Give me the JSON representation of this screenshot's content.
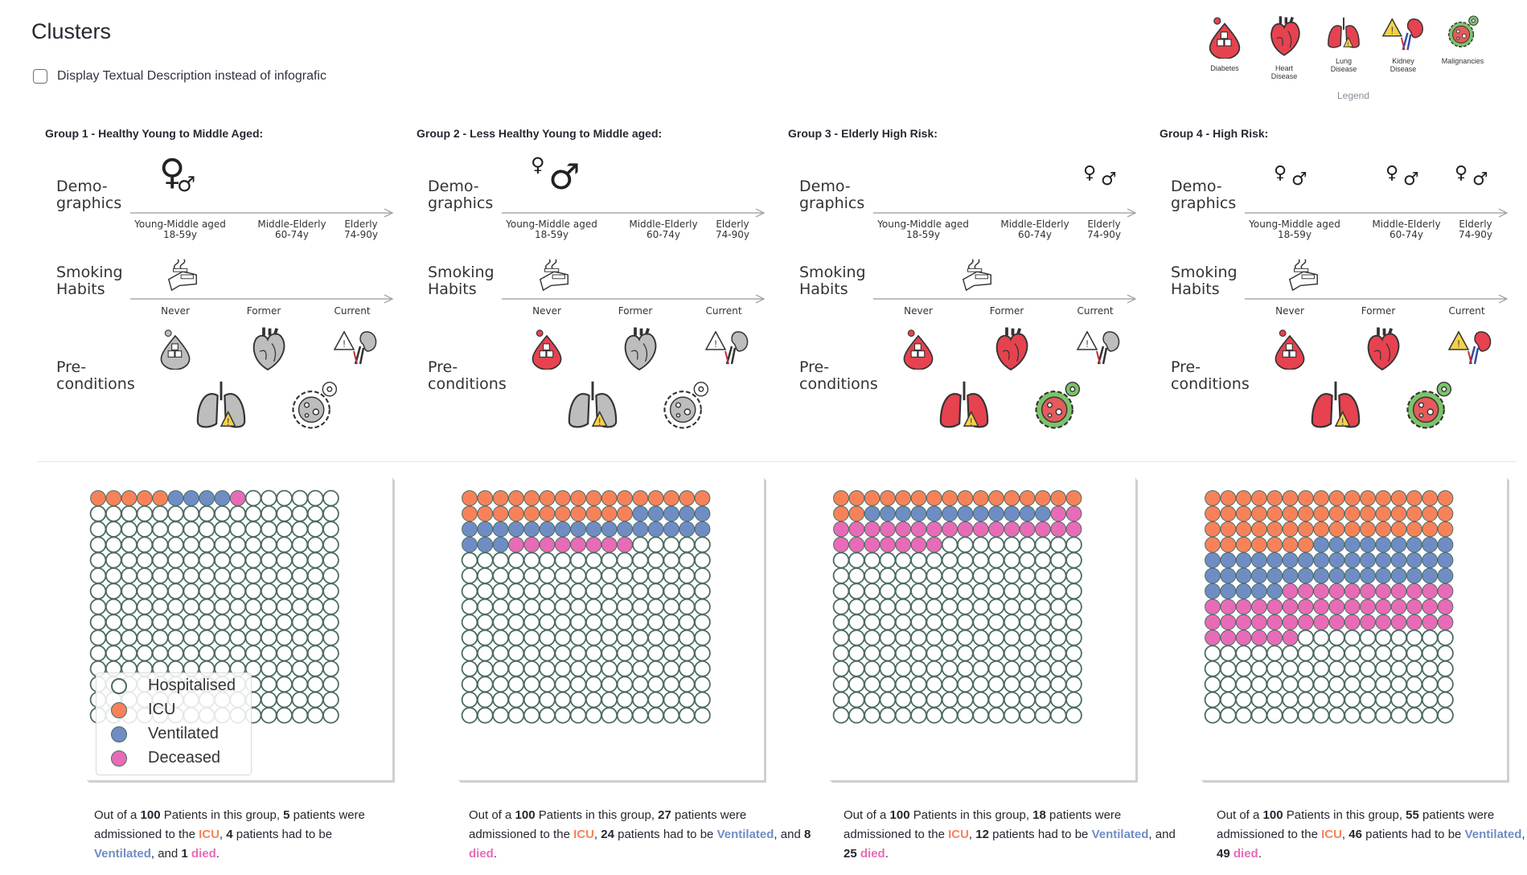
{
  "page": {
    "title": "Clusters",
    "checkbox_label": "Display Textual Description instead of infografic",
    "checkbox_checked": false
  },
  "legend": {
    "caption": "Legend",
    "items": [
      {
        "label": "Diabetes",
        "icon": "diabetes-icon"
      },
      {
        "label": "Heart\nDisease",
        "icon": "heart-icon"
      },
      {
        "label": "Lung\nDisease",
        "icon": "lungs-icon"
      },
      {
        "label": "Kidney\nDisease",
        "icon": "kidney-icon"
      },
      {
        "label": "Malignancies",
        "icon": "malignancy-icon"
      }
    ]
  },
  "infographic_labels": {
    "demographics": "Demo-\ngraphics",
    "smoking": "Smoking\nHabits",
    "preconditions": "Pre-\nconditions",
    "age_young": "Young-Middle aged\n18-59y",
    "age_middle": "Middle-Elderly\n60-74y",
    "age_elderly": "Elderly\n74-90y",
    "smoke_never": "Never",
    "smoke_former": "Former",
    "smoke_current": "Current"
  },
  "waffle_legend": {
    "hospitalised": "Hospitalised",
    "icu": "ICU",
    "ventilated": "Ventilated",
    "deceased": "Deceased"
  },
  "colors": {
    "icu": "#f7825a",
    "ventilated": "#6f8dc4",
    "deceased": "#e86bb7",
    "hospitalised_stroke": "#4c6b63",
    "risk_red": "#e6424f",
    "neutral_gray": "#bdbdbd"
  },
  "groups": [
    {
      "title": "Group 1 - Healthy Young to Middle Aged:",
      "demographics": [
        {
          "age": "young",
          "size": "large",
          "female": "♀",
          "male": "♂"
        }
      ],
      "smoking_position": "never",
      "conditions": {
        "diabetes": "gray",
        "heart": "gray",
        "kidney": "gray",
        "lung": "gray",
        "malignancy": "gray"
      },
      "waffle": {
        "total": 100,
        "icu": 5,
        "ventilated": 4,
        "deceased": 1
      },
      "desc": {
        "p1": "Out of a ",
        "total": "100",
        "p2": " Patients in this group, ",
        "icu_n": "5",
        "p3": " patients were admissioned to the ",
        "icu": "ICU",
        "p4": ", ",
        "vent_n": "4",
        "p5": " patients had to be ",
        "vent": "Ventilated",
        "p6": ", and ",
        "died_n": "1",
        "p7": " ",
        "died": "died",
        "p8": "."
      }
    },
    {
      "title": "Group 2 - Less Healthy Young to Middle aged:",
      "demographics": [
        {
          "age": "young",
          "size": "mixed",
          "female": "♀",
          "male": "♂"
        }
      ],
      "smoking_position": "never",
      "conditions": {
        "diabetes": "red",
        "heart": "gray",
        "kidney": "gray",
        "lung": "gray",
        "malignancy": "gray"
      },
      "waffle": {
        "total": 100,
        "icu": 27,
        "ventilated": 24,
        "deceased": 8
      },
      "desc": {
        "p1": "Out of a ",
        "total": "100",
        "p2": " Patients in this group, ",
        "icu_n": "27",
        "p3": " patients were admissioned to the ",
        "icu": "ICU",
        "p4": ", ",
        "vent_n": "24",
        "p5": " patients had to be ",
        "vent": "Ventilated",
        "p6": ", and ",
        "died_n": "8",
        "p7": " ",
        "died": "died",
        "p8": "."
      }
    },
    {
      "title": "Group 3 - Elderly High Risk:",
      "demographics": [
        {
          "age": "elderly",
          "size": "small",
          "female": "♀",
          "male": "♂"
        }
      ],
      "smoking_position": "former",
      "conditions": {
        "diabetes": "red",
        "heart": "red",
        "kidney": "gray",
        "lung": "red",
        "malignancy": "red"
      },
      "waffle": {
        "total": 100,
        "icu": 18,
        "ventilated": 12,
        "deceased": 25
      },
      "desc": {
        "p1": "Out of a ",
        "total": "100",
        "p2": " Patients in this group, ",
        "icu_n": "18",
        "p3": " patients were admissioned to the ",
        "icu": "ICU",
        "p4": ", ",
        "vent_n": "12",
        "p5": " patients had to be ",
        "vent": "Ventilated",
        "p6": ", and ",
        "died_n": "25",
        "p7": " ",
        "died": "died",
        "p8": "."
      }
    },
    {
      "title": "Group 4 - High Risk:",
      "demographics": [
        {
          "age": "young",
          "size": "small",
          "female": "♀",
          "male": "♂"
        },
        {
          "age": "middle",
          "size": "small",
          "female": "♀",
          "male": "♂"
        },
        {
          "age": "elderly",
          "size": "small",
          "female": "♀",
          "male": "♂"
        }
      ],
      "smoking_position": "never-former",
      "conditions": {
        "diabetes": "red",
        "heart": "red",
        "kidney": "red",
        "lung": "red",
        "malignancy": "red"
      },
      "waffle": {
        "total": 100,
        "icu": 55,
        "ventilated": 46,
        "deceased": 49
      },
      "desc": {
        "p1": "Out of a ",
        "total": "100",
        "p2": " Patients in this group, ",
        "icu_n": "55",
        "p3": " patients were admissioned to the ",
        "icu": "ICU",
        "p4": ", ",
        "vent_n": "46",
        "p5": " patients had to be ",
        "vent": "Ventilated",
        "p6": ", and ",
        "died_n": "49",
        "p7": " ",
        "died": "died",
        "p8": "."
      }
    }
  ]
}
